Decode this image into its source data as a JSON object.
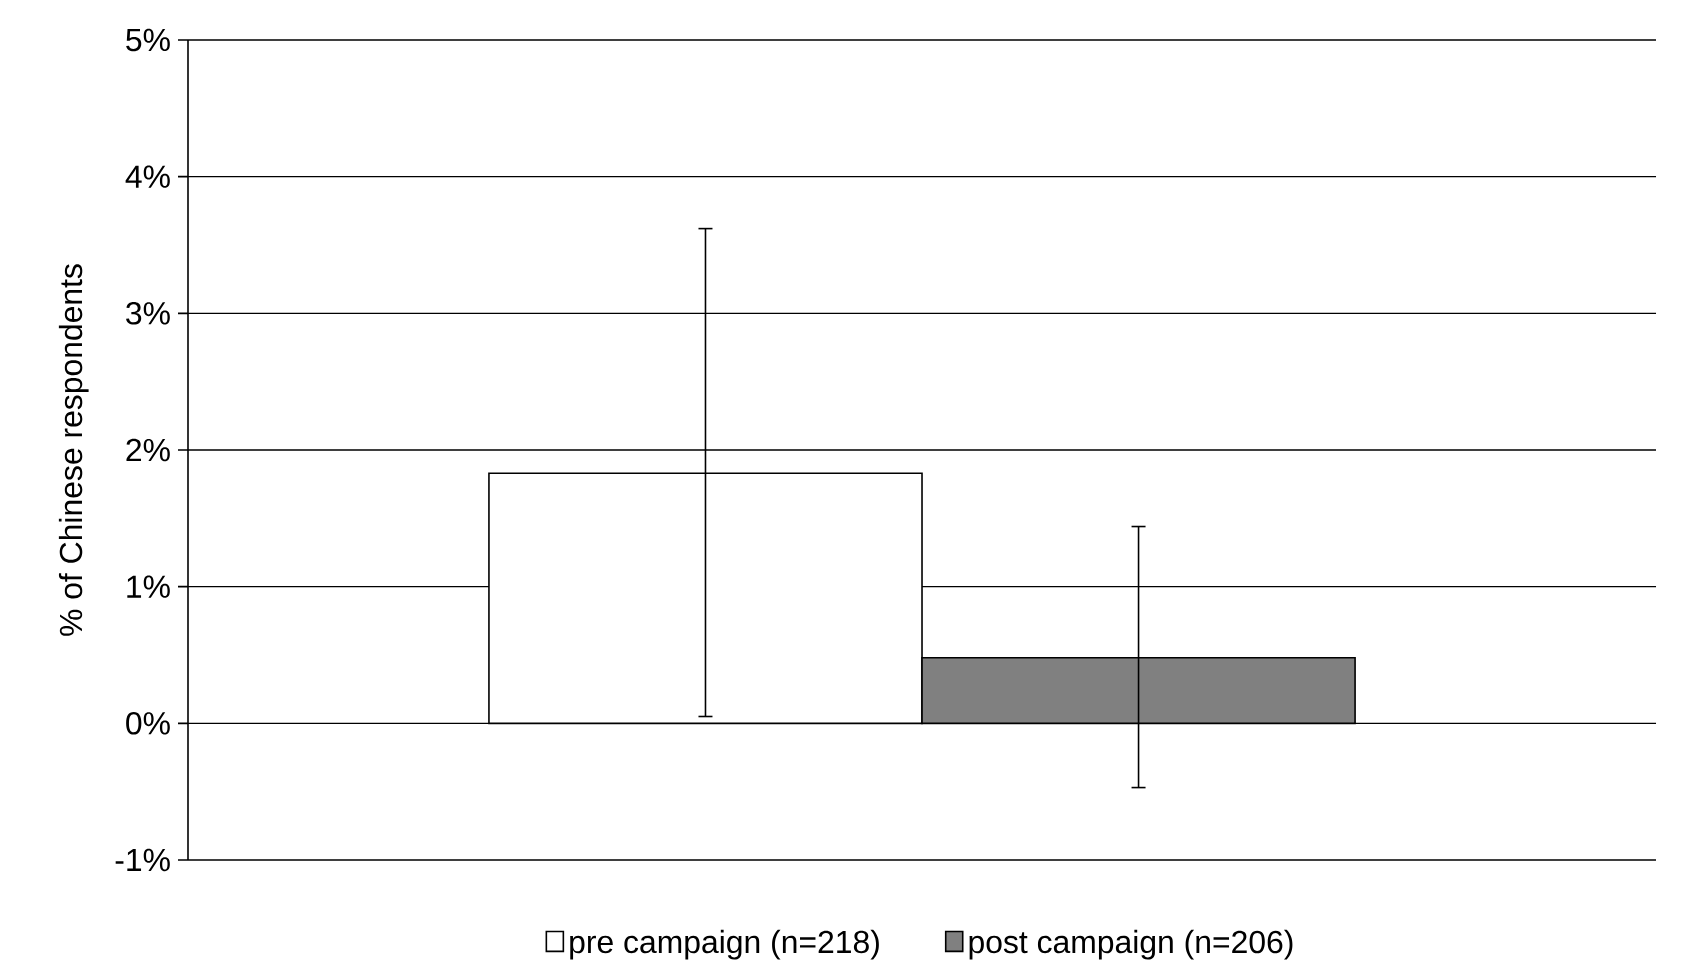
{
  "chart_data": {
    "type": "bar",
    "ylabel": "% of Chinese respondents",
    "categories": [
      null
    ],
    "series": [
      {
        "name": "pre campaign (n=218)",
        "color": "#ffffff",
        "values": [
          1.83
        ],
        "errors": [
          [
            0.05,
            3.62
          ]
        ]
      },
      {
        "name": "post campaign (n=206)",
        "color": "#808080",
        "values": [
          0.48
        ],
        "errors": [
          [
            -0.47,
            1.44
          ]
        ]
      }
    ],
    "ylim": [
      -1,
      5
    ],
    "yticks": [
      {
        "value": -1,
        "label": "-1%"
      },
      {
        "value": 0,
        "label": "0%"
      },
      {
        "value": 1,
        "label": "1%"
      },
      {
        "value": 2,
        "label": "2%"
      },
      {
        "value": 3,
        "label": "3%"
      },
      {
        "value": 4,
        "label": "4%"
      },
      {
        "value": 5,
        "label": "5%"
      }
    ],
    "grid": "y",
    "legend": "bottom"
  }
}
